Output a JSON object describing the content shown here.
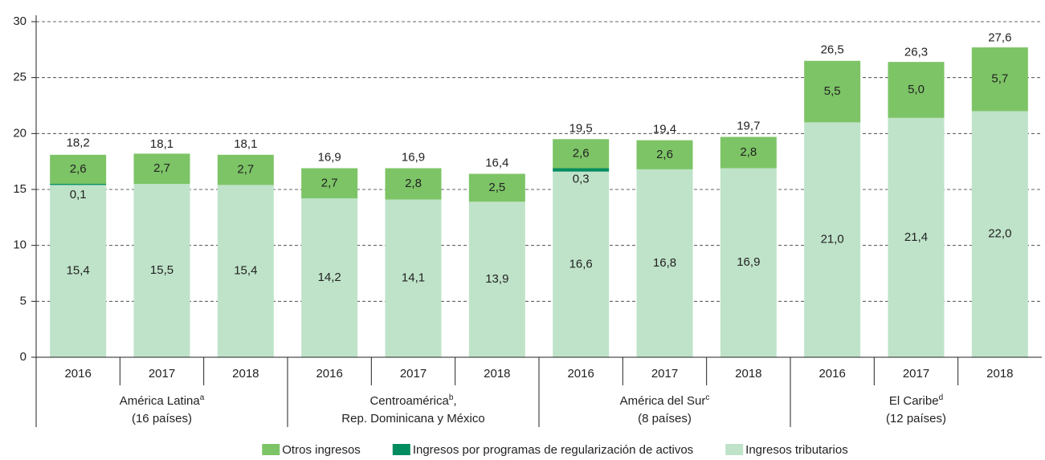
{
  "chart_data": {
    "type": "stacked-bar",
    "categories": [
      "2016",
      "2017",
      "2018",
      "2016",
      "2017",
      "2018",
      "2016",
      "2017",
      "2018",
      "2016",
      "2017",
      "2018"
    ],
    "groups": [
      {
        "name": "América Latina",
        "note": "a",
        "line2": "(16 países)"
      },
      {
        "name": "Centroamérica",
        "note": "b",
        "suffix": ",",
        "line2": "Rep. Dominicana y México"
      },
      {
        "name": "América del Sur",
        "note": "c",
        "line2": "(8 países)"
      },
      {
        "name": "El Caribe",
        "note": "d",
        "line2": "(12 países)"
      }
    ],
    "series": [
      {
        "name": "Otros ingresos",
        "color": "#7dc466",
        "values": [
          2.6,
          2.7,
          2.7,
          2.7,
          2.8,
          2.5,
          2.6,
          2.6,
          2.8,
          5.5,
          5.0,
          5.7
        ],
        "value_labels": [
          "2,6",
          "2,7",
          "2,7",
          "2,7",
          "2,8",
          "2,5",
          "2,6",
          "2,6",
          "2,8",
          "5,5",
          "5,0",
          "5,7"
        ]
      },
      {
        "name": "Ingresos por programas de regularización de activos",
        "color": "#008c5f",
        "values": [
          0.1,
          null,
          null,
          null,
          null,
          null,
          0.3,
          null,
          null,
          null,
          null,
          null
        ],
        "value_labels": [
          "0,1",
          null,
          null,
          null,
          null,
          null,
          "0,3",
          null,
          null,
          null,
          null,
          null
        ]
      },
      {
        "name": "Ingresos tributarios",
        "color": "#bfe3c9",
        "values": [
          15.4,
          15.5,
          15.4,
          14.2,
          14.1,
          13.9,
          16.6,
          16.8,
          16.9,
          21.0,
          21.4,
          22.0
        ],
        "value_labels": [
          "15,4",
          "15,5",
          "15,4",
          "14,2",
          "14,1",
          "13,9",
          "16,6",
          "16,8",
          "16,9",
          "21,0",
          "21,4",
          "22,0"
        ]
      }
    ],
    "totals": {
      "values": [
        18.2,
        18.1,
        18.1,
        16.9,
        16.9,
        16.4,
        19.5,
        19.4,
        19.7,
        26.5,
        26.3,
        27.6
      ],
      "value_labels": [
        "18,2",
        "18,1",
        "18,1",
        "16,9",
        "16,9",
        "16,4",
        "19,5",
        "19,4",
        "19,7",
        "26,5",
        "26,3",
        "27,6"
      ]
    },
    "ylim": [
      0,
      30
    ],
    "yticks": [
      0,
      5,
      10,
      15,
      20,
      25,
      30
    ],
    "grid": true
  }
}
